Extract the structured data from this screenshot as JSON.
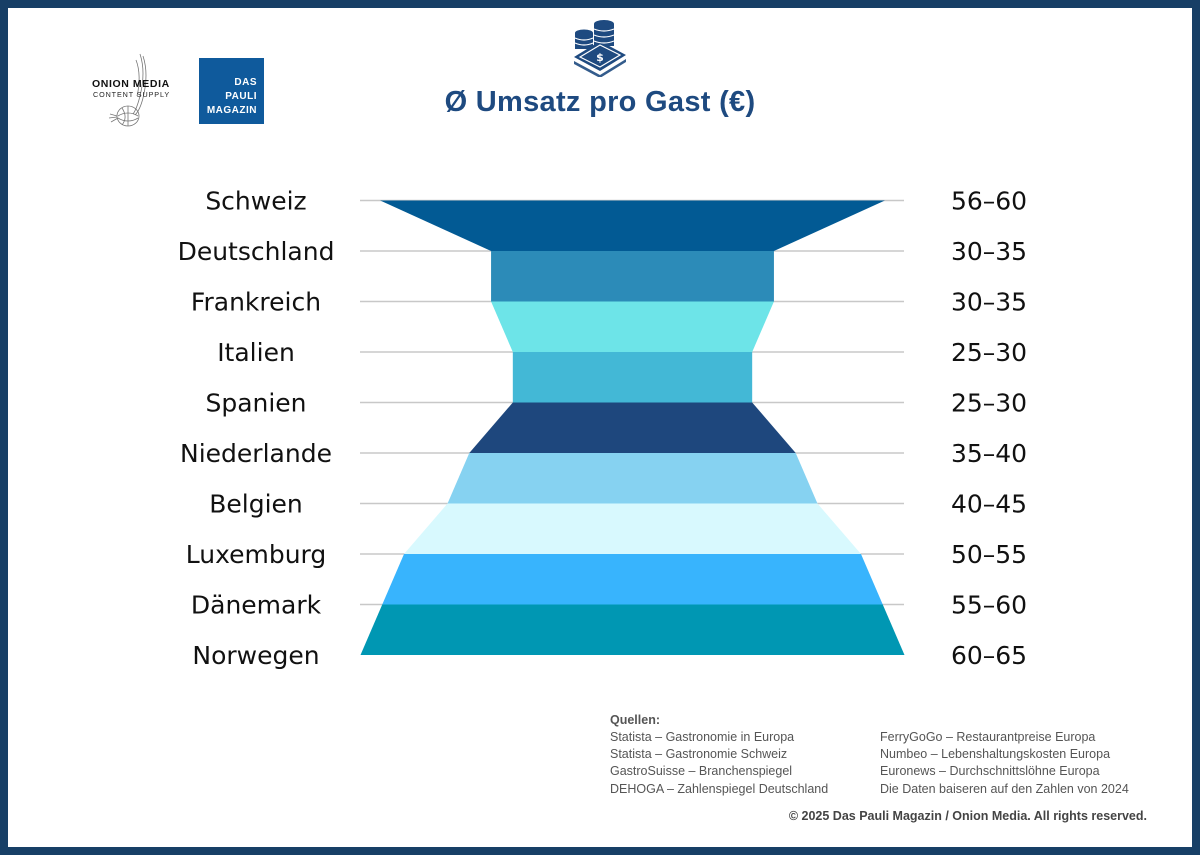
{
  "header": {
    "title": "Ø Umsatz pro Gast (€)",
    "icon": "coins-banknote-icon",
    "logos": {
      "onion_media": {
        "line1": "ONION MEDIA",
        "line2": "CONTENT SUPPLY"
      },
      "pauli": {
        "lines": [
          "DAS",
          "PAULI",
          "MAGAZIN"
        ],
        "color": "#0f5a9c"
      }
    }
  },
  "colors": {
    "frame": "#173f66",
    "title": "#1e4a80",
    "gridline": "#c8c8c8"
  },
  "chart_data": {
    "type": "funnel",
    "title": "Ø Umsatz pro Gast (€)",
    "unit": "€",
    "categories": [
      "Schweiz",
      "Deutschland",
      "Frankreich",
      "Italien",
      "Spanien",
      "Niederlande",
      "Belgien",
      "Luxemburg",
      "Dänemark",
      "Norwegen"
    ],
    "range_labels": [
      "56–60",
      "30–35",
      "30–35",
      "25–30",
      "25–30",
      "35–40",
      "40–45",
      "50–55",
      "55–60",
      "60–65"
    ],
    "ranges": [
      [
        56,
        60
      ],
      [
        30,
        35
      ],
      [
        30,
        35
      ],
      [
        25,
        30
      ],
      [
        25,
        30
      ],
      [
        35,
        40
      ],
      [
        40,
        45
      ],
      [
        50,
        55
      ],
      [
        55,
        60
      ],
      [
        60,
        65
      ]
    ],
    "band_colors": [
      "#025a94",
      "#2c8bb8",
      "#6de4e8",
      "#43b8d6",
      "#1e477d",
      "#86d2f1",
      "#d8f9fe",
      "#38b4fd",
      "#0097b3"
    ],
    "grid": true,
    "max_value": 62.5
  },
  "sources": {
    "heading": "Quellen:",
    "left": [
      "Statista – Gastronomie in Europa",
      "Statista – Gastronomie Schweiz",
      "GastroSuisse – Branchenspiegel",
      "DEHOGA – Zahlenspiegel Deutschland"
    ],
    "right": [
      "FerryGoGo – Restaurantpreise Europa",
      "Numbeo – Lebenshaltungskosten Europa",
      "Euronews – Durchschnittslöhne Europa",
      "Die Daten baiseren auf den Zahlen von 2024"
    ]
  },
  "footer": {
    "copyright": "© 2025 Das Pauli Magazin / Onion Media. All rights reserved."
  }
}
